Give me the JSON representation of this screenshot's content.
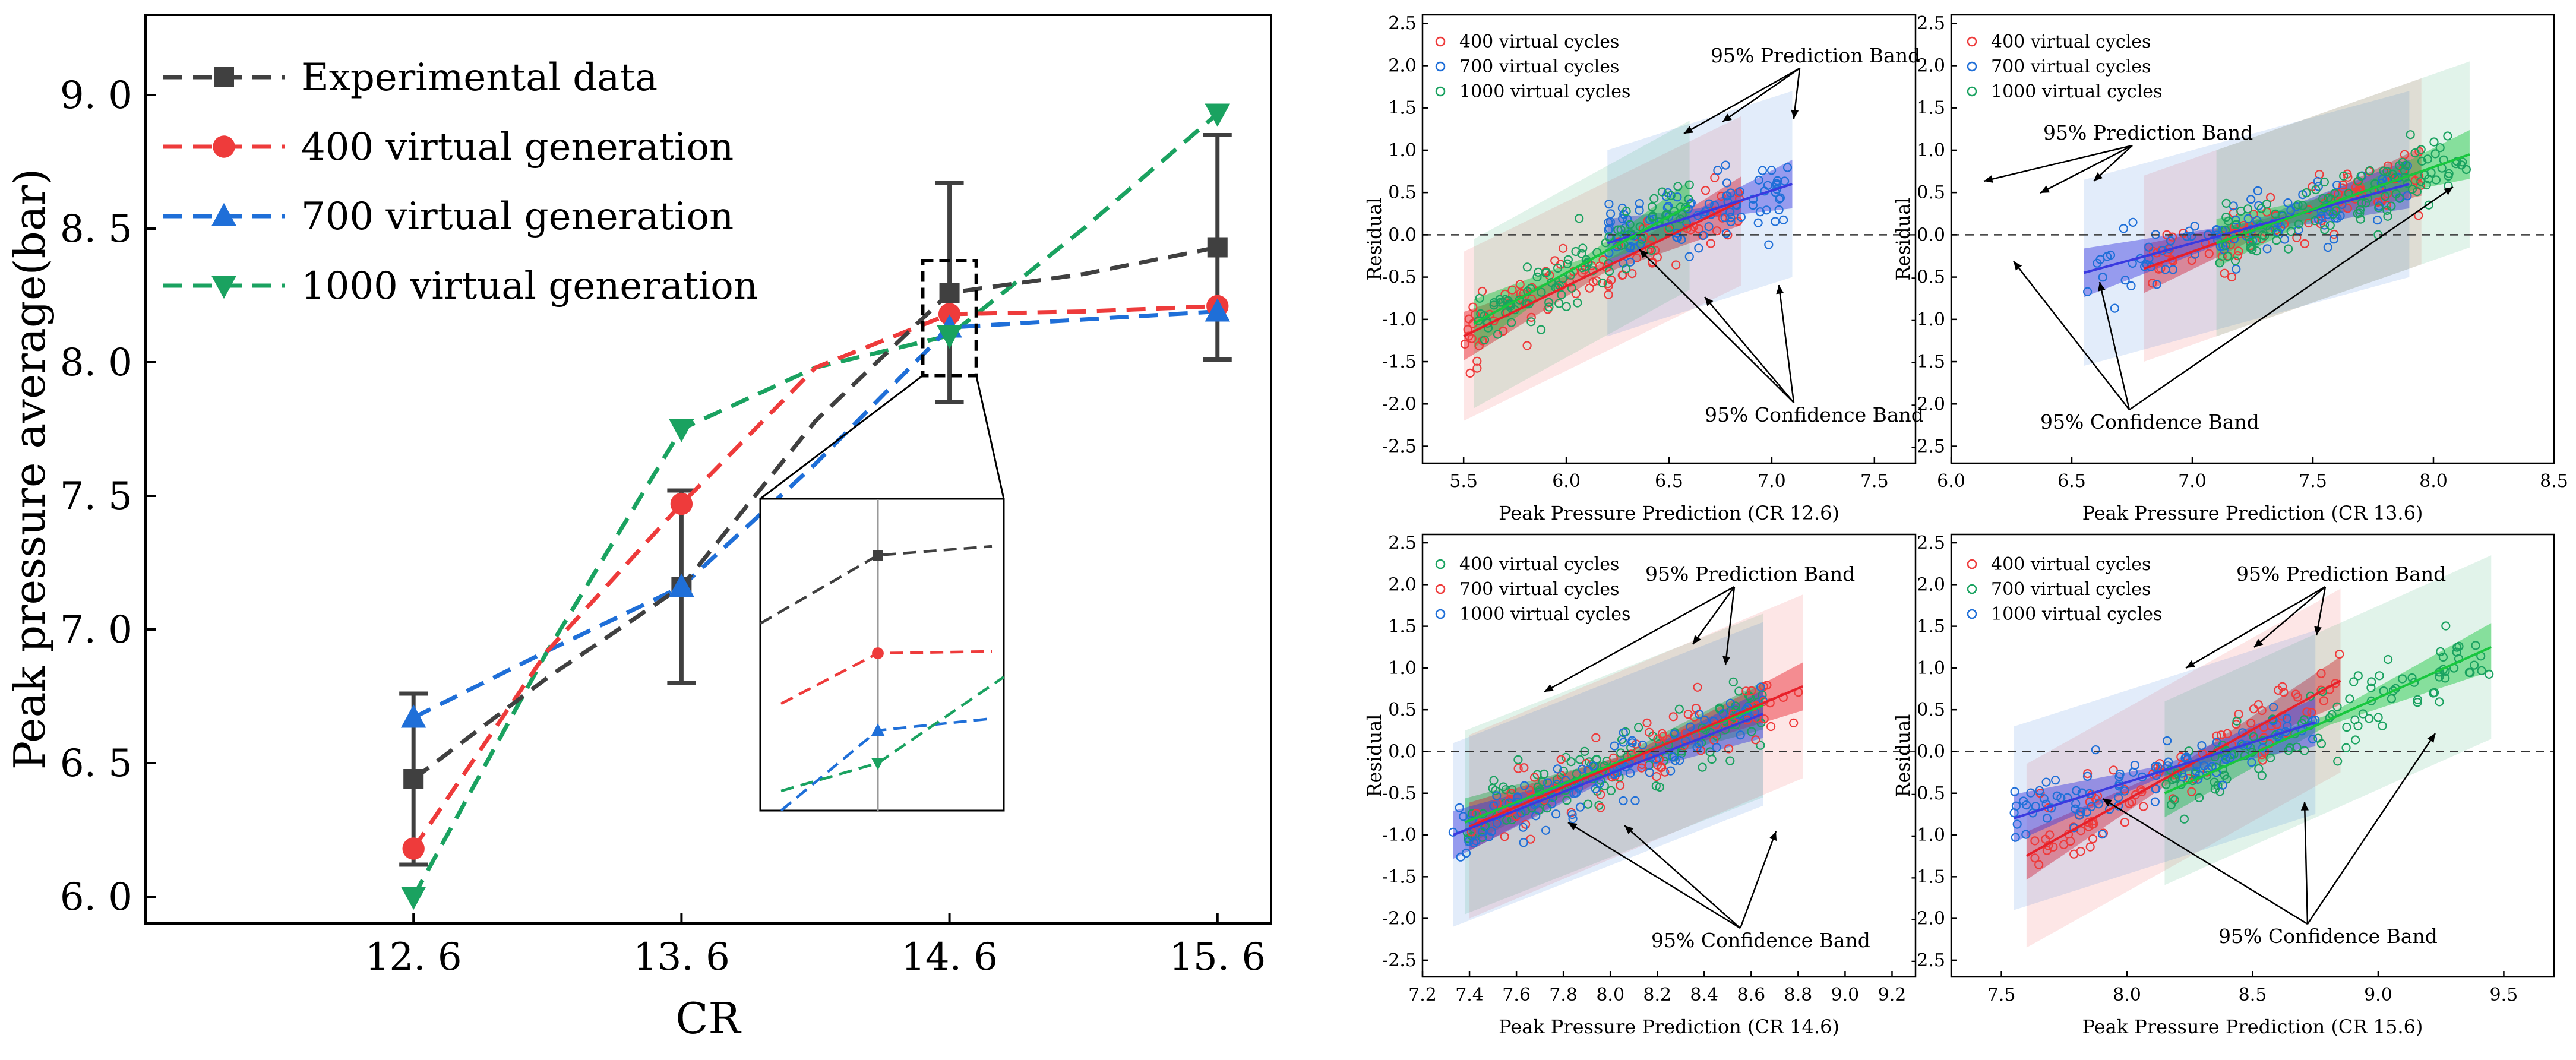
{
  "colors": {
    "experimental": "#404040",
    "v400": "#ee3b3b",
    "v700": "#1f6fd8",
    "v1000": "#1aa260",
    "green_fit": "#18c73e",
    "blue_fit": "#3a3ae0",
    "red_fit": "#e8202a"
  },
  "chart_data": [
    {
      "id": "main",
      "type": "line",
      "xlabel": "CR",
      "ylabel": "Peak pressure average(bar)",
      "categories": [
        "12. 6",
        "13. 6",
        "14. 6",
        "15. 6"
      ],
      "x": [
        12.6,
        13.6,
        14.6,
        15.6
      ],
      "xlim": [
        11.6,
        15.8
      ],
      "ylim": [
        5.9,
        9.3
      ],
      "yticks": [
        6.0,
        6.5,
        7.0,
        7.5,
        8.0,
        8.5,
        9.0
      ],
      "ytick_labels": [
        "6. 0",
        "6. 5",
        "7. 0",
        "7. 5",
        "8. 0",
        "8. 5",
        "9. 0"
      ],
      "legend_position": "top-left",
      "series": [
        {
          "key": "experimental",
          "name": "Experimental data",
          "marker": "square",
          "values": [
            6.44,
            7.16,
            8.26,
            8.43
          ],
          "err": [
            0.32,
            0.36,
            0.41,
            0.42
          ]
        },
        {
          "key": "v400",
          "name": "400  virtual generation",
          "marker": "circle",
          "values": [
            6.18,
            7.47,
            8.18,
            8.21
          ]
        },
        {
          "key": "v700",
          "name": "700  virtual generation",
          "marker": "triangle-up",
          "values": [
            6.67,
            7.16,
            8.13,
            8.19
          ]
        },
        {
          "key": "v1000",
          "name": "1000 virtual generation",
          "marker": "triangle-down",
          "values": [
            6.0,
            7.75,
            8.1,
            8.93
          ]
        }
      ],
      "curve_knots": {
        "experimental": [
          [
            12.6,
            6.44
          ],
          [
            13.1,
            6.82
          ],
          [
            13.6,
            7.16
          ],
          [
            14.1,
            7.78
          ],
          [
            14.6,
            8.26
          ],
          [
            15.1,
            8.33
          ],
          [
            15.6,
            8.43
          ]
        ],
        "v400": [
          [
            12.6,
            6.18
          ],
          [
            13.1,
            6.92
          ],
          [
            13.6,
            7.47
          ],
          [
            14.1,
            7.98
          ],
          [
            14.6,
            8.18
          ],
          [
            15.1,
            8.19
          ],
          [
            15.6,
            8.21
          ]
        ],
        "v700": [
          [
            12.6,
            6.67
          ],
          [
            13.1,
            6.92
          ],
          [
            13.6,
            7.16
          ],
          [
            14.1,
            7.62
          ],
          [
            14.6,
            8.13
          ],
          [
            15.1,
            8.16
          ],
          [
            15.6,
            8.19
          ]
        ],
        "v1000": [
          [
            12.6,
            6.0
          ],
          [
            13.1,
            6.92
          ],
          [
            13.6,
            7.75
          ],
          [
            14.1,
            7.98
          ],
          [
            14.6,
            8.1
          ],
          [
            15.1,
            8.5
          ],
          [
            15.6,
            8.93
          ]
        ]
      },
      "zoom_box": {
        "x": [
          14.5,
          14.7
        ],
        "y": [
          7.95,
          8.38
        ]
      }
    },
    {
      "id": "cr126",
      "type": "scatter",
      "xlabel": "Peak Pressure Prediction (CR 12.6)",
      "ylabel": "Residual",
      "xlim": [
        5.3,
        7.7
      ],
      "xticks": [
        5.5,
        6.0,
        6.5,
        7.0,
        7.5
      ],
      "xtick_labels": [
        "5.5",
        "6.0",
        "6.5",
        "7.0",
        "7.5"
      ],
      "ylim": [
        -2.7,
        2.6
      ],
      "yticks": [
        -2.5,
        -2.0,
        -1.5,
        -1.0,
        -0.5,
        0.0,
        0.5,
        1.0,
        1.5,
        2.0,
        2.5
      ],
      "ytick_labels": [
        "-2.5",
        "-2.0",
        "-1.5",
        "-1.0",
        "-0.5",
        "0.0",
        "0.5",
        "1.0",
        "1.5",
        "2.0",
        "2.5"
      ],
      "series": [
        {
          "key": "v400",
          "name": "400 virtual cycles",
          "n": 90,
          "xrange": [
            5.5,
            6.85
          ],
          "fit": [
            [
              5.5,
              -1.2
            ],
            [
              6.85,
              0.4
            ]
          ],
          "noise": 0.5
        },
        {
          "key": "v700",
          "name": "700 virtual cycles",
          "n": 90,
          "xrange": [
            6.2,
            7.1
          ],
          "fit": [
            [
              6.2,
              -0.1
            ],
            [
              7.1,
              0.6
            ]
          ],
          "noise": 0.55
        },
        {
          "key": "v1000",
          "name": "1000 virtual cycles",
          "n": 100,
          "xrange": [
            5.55,
            6.6
          ],
          "fit": [
            [
              5.55,
              -1.05
            ],
            [
              6.6,
              0.35
            ]
          ],
          "noise": 0.5
        }
      ],
      "annotations": {
        "prediction": "95% Prediction Band",
        "confidence": "95% Confidence Band"
      }
    },
    {
      "id": "cr136",
      "type": "scatter",
      "xlabel": "Peak Pressure Prediction (CR 13.6)",
      "ylabel": "Residual",
      "xlim": [
        6.0,
        8.5
      ],
      "xticks": [
        6.0,
        6.5,
        7.0,
        7.5,
        8.0,
        8.5
      ],
      "xtick_labels": [
        "6.0",
        "6.5",
        "7.0",
        "7.5",
        "8.0",
        "8.5"
      ],
      "ylim": [
        -2.7,
        2.6
      ],
      "yticks": [
        -2.5,
        -2.0,
        -1.5,
        -1.0,
        -0.5,
        0.0,
        0.5,
        1.0,
        1.5,
        2.0,
        2.5
      ],
      "ytick_labels": [
        "-2.5",
        "-2.0",
        "-1.5",
        "-1.0",
        "-0.5",
        "0.0",
        "0.5",
        "1.0",
        "1.5",
        "2.0",
        "2.5"
      ],
      "series": [
        {
          "key": "v400",
          "name": "400 virtual cycles",
          "n": 90,
          "xrange": [
            6.8,
            7.95
          ],
          "fit": [
            [
              6.8,
              -0.4
            ],
            [
              7.95,
              0.75
            ]
          ],
          "noise": 0.55
        },
        {
          "key": "v700",
          "name": "700 virtual cycles",
          "n": 90,
          "xrange": [
            6.55,
            7.9
          ],
          "fit": [
            [
              6.55,
              -0.45
            ],
            [
              7.9,
              0.6
            ]
          ],
          "noise": 0.55
        },
        {
          "key": "v1000",
          "name": "1000 virtual cycles",
          "n": 110,
          "xrange": [
            7.1,
            8.15
          ],
          "fit": [
            [
              7.1,
              -0.1
            ],
            [
              8.15,
              0.95
            ]
          ],
          "noise": 0.55
        }
      ],
      "annotations": {
        "prediction": "95% Prediction Band",
        "confidence": "95% Confidence Band"
      }
    },
    {
      "id": "cr146",
      "type": "scatter",
      "xlabel": "Peak Pressure Prediction (CR 14.6)",
      "ylabel": "Residual",
      "xlim": [
        7.2,
        9.3
      ],
      "xticks": [
        7.2,
        7.4,
        7.6,
        7.8,
        8.0,
        8.2,
        8.4,
        8.6,
        8.8,
        9.0,
        9.2
      ],
      "xtick_labels": [
        "7.2",
        "7.4",
        "7.6",
        "7.8",
        "8.0",
        "8.2",
        "8.4",
        "8.6",
        "8.8",
        "9.0",
        "9.2"
      ],
      "ylim": [
        -2.7,
        2.6
      ],
      "yticks": [
        -2.5,
        -2.0,
        -1.5,
        -1.0,
        -0.5,
        0.0,
        0.5,
        1.0,
        1.5,
        2.0,
        2.5
      ],
      "ytick_labels": [
        "-2.5",
        "-2.0",
        "-1.5",
        "-1.0",
        "-0.5",
        "0.0",
        "0.5",
        "1.0",
        "1.5",
        "2.0",
        "2.5"
      ],
      "series": [
        {
          "key": "v1000",
          "name": "400 virtual cycles",
          "n": 110,
          "xrange": [
            7.38,
            8.65
          ],
          "fit": [
            [
              7.38,
              -0.85
            ],
            [
              8.65,
              0.55
            ]
          ],
          "noise": 0.55
        },
        {
          "key": "v400",
          "name": "700 virtual cycles",
          "n": 90,
          "xrange": [
            7.4,
            8.82
          ],
          "fit": [
            [
              7.4,
              -0.9
            ],
            [
              8.82,
              0.78
            ]
          ],
          "noise": 0.55
        },
        {
          "key": "v700",
          "name": "1000 virtual cycles",
          "n": 90,
          "xrange": [
            7.33,
            8.65
          ],
          "fit": [
            [
              7.33,
              -1.0
            ],
            [
              8.65,
              0.45
            ]
          ],
          "noise": 0.55
        }
      ],
      "annotations": {
        "prediction": "95% Prediction Band",
        "confidence": "95% Confidence Band"
      }
    },
    {
      "id": "cr156",
      "type": "scatter",
      "xlabel": "Peak Pressure Prediction (CR 15.6)",
      "ylabel": "Residual",
      "xlim": [
        7.3,
        9.7
      ],
      "xticks": [
        7.5,
        8.0,
        8.5,
        9.0,
        9.5
      ],
      "xtick_labels": [
        "7.5",
        "8.0",
        "8.5",
        "9.0",
        "9.5"
      ],
      "ylim": [
        -2.7,
        2.6
      ],
      "yticks": [
        -2.5,
        -2.0,
        -1.5,
        -1.0,
        -0.5,
        0.0,
        0.5,
        1.0,
        1.5,
        2.0,
        2.5
      ],
      "ytick_labels": [
        "-2.5",
        "-2.0",
        "-1.5",
        "-1.0",
        "-0.5",
        "0.0",
        "0.5",
        "1.0",
        "1.5",
        "2.0",
        "2.5"
      ],
      "series": [
        {
          "key": "v400",
          "name": "400 virtual cycles",
          "n": 90,
          "xrange": [
            7.6,
            8.85
          ],
          "fit": [
            [
              7.6,
              -1.25
            ],
            [
              8.85,
              0.85
            ]
          ],
          "noise": 0.55
        },
        {
          "key": "v1000",
          "name": "700 virtual cycles",
          "n": 110,
          "xrange": [
            8.15,
            9.45
          ],
          "fit": [
            [
              8.15,
              -0.5
            ],
            [
              9.45,
              1.25
            ]
          ],
          "noise": 0.55
        },
        {
          "key": "v700",
          "name": "1000 virtual cycles",
          "n": 90,
          "xrange": [
            7.55,
            8.75
          ],
          "fit": [
            [
              7.55,
              -0.8
            ],
            [
              8.75,
              0.35
            ]
          ],
          "noise": 0.55
        }
      ],
      "annotations": {
        "prediction": "95% Prediction Band",
        "confidence": "95% Confidence Band"
      }
    }
  ]
}
